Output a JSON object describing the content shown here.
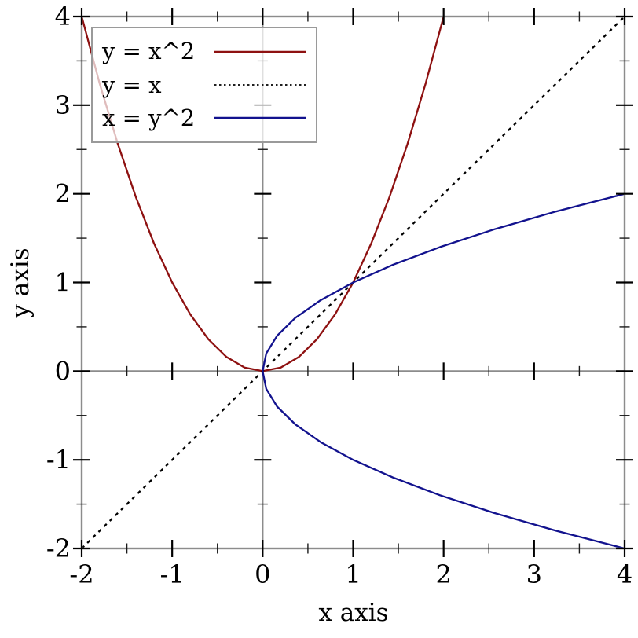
{
  "figure": {
    "background": "#ffffff",
    "border_color": "#8c8c8c",
    "major_tick_color": "#000000",
    "minor_tick_color": "#1a1a1a"
  },
  "chart_data": {
    "type": "line",
    "title": "",
    "xlabel": "x axis",
    "ylabel": "y axis",
    "xlim": [
      -2,
      4
    ],
    "ylim": [
      -2,
      4
    ],
    "grid": false,
    "legend_position": "top-left",
    "x_major_ticks": [
      -2,
      -1,
      0,
      1,
      2,
      3,
      4
    ],
    "x_minor_ticks": [
      -1.5,
      -0.5,
      0.5,
      1.5,
      2.5,
      3.5
    ],
    "y_major_ticks": [
      -2,
      -1,
      0,
      1,
      2,
      3,
      4
    ],
    "y_minor_ticks": [
      -1.5,
      -0.5,
      0.5,
      1.5,
      2.5,
      3.5
    ],
    "x_tick_labels": [
      "-2",
      "-1",
      "0",
      "1",
      "2",
      "3",
      "4"
    ],
    "y_tick_labels": [
      "-2",
      "-1",
      "0",
      "1",
      "2",
      "3",
      "4"
    ],
    "zero_axes_drawn": true,
    "series": [
      {
        "name": "y = x^2",
        "color": "#8e1111",
        "style": "solid",
        "points": [
          [
            -2,
            4
          ],
          [
            -1.8,
            3.24
          ],
          [
            -1.6,
            2.56
          ],
          [
            -1.4,
            1.96
          ],
          [
            -1.2,
            1.44
          ],
          [
            -1,
            1
          ],
          [
            -0.8,
            0.64
          ],
          [
            -0.6,
            0.36
          ],
          [
            -0.4,
            0.16
          ],
          [
            -0.2,
            0.04
          ],
          [
            0,
            0
          ],
          [
            0.2,
            0.04
          ],
          [
            0.4,
            0.16
          ],
          [
            0.6,
            0.36
          ],
          [
            0.8,
            0.64
          ],
          [
            1,
            1
          ],
          [
            1.2,
            1.44
          ],
          [
            1.4,
            1.96
          ],
          [
            1.6,
            2.56
          ],
          [
            1.8,
            3.24
          ],
          [
            2,
            4
          ]
        ]
      },
      {
        "name": "y = x",
        "color": "#000000",
        "style": "dot",
        "points": [
          [
            -2,
            -2
          ],
          [
            4,
            4
          ]
        ]
      },
      {
        "name": "x = y^2",
        "color": "#12128e",
        "style": "solid",
        "points": [
          [
            4,
            -2
          ],
          [
            3.24,
            -1.8
          ],
          [
            2.56,
            -1.6
          ],
          [
            1.96,
            -1.4
          ],
          [
            1.44,
            -1.2
          ],
          [
            1,
            -1
          ],
          [
            0.64,
            -0.8
          ],
          [
            0.36,
            -0.6
          ],
          [
            0.16,
            -0.4
          ],
          [
            0.04,
            -0.2
          ],
          [
            0,
            0
          ],
          [
            0.04,
            0.2
          ],
          [
            0.16,
            0.4
          ],
          [
            0.36,
            0.6
          ],
          [
            0.64,
            0.8
          ],
          [
            1,
            1
          ],
          [
            1.44,
            1.2
          ],
          [
            1.96,
            1.4
          ],
          [
            2.56,
            1.6
          ],
          [
            3.24,
            1.8
          ],
          [
            4,
            2
          ]
        ]
      }
    ]
  }
}
